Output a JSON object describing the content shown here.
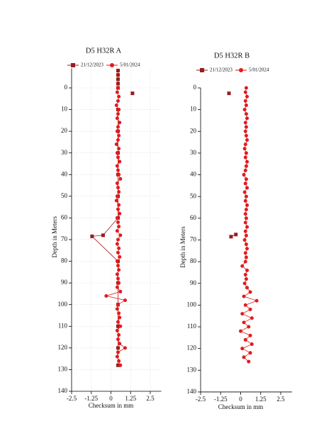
{
  "chart_data": [
    {
      "type": "line",
      "title": "D5 H32R A",
      "x_label": "Checksum in mm",
      "y_label": "Depth in Meters",
      "xlim": [
        -2.5,
        3.2
      ],
      "xticks": [
        -2.5,
        -1.25,
        0,
        1.25,
        2.5
      ],
      "ylim": [
        140,
        -9
      ],
      "yticks": [
        0,
        10,
        20,
        30,
        40,
        50,
        60,
        70,
        80,
        90,
        100,
        110,
        120,
        130,
        140
      ],
      "grid": true,
      "series": [
        {
          "name": "21/12/2023",
          "color": "#9b1c1c",
          "marker": "square",
          "y": [
            -8,
            -6,
            -4,
            -2,
            0,
            null,
            2.5,
            null,
            10,
            20,
            30,
            40,
            50,
            60,
            68,
            68.5,
            80,
            90,
            100,
            110,
            120,
            128
          ],
          "x": [
            0.45,
            0.45,
            0.45,
            0.45,
            0.45,
            null,
            1.37,
            null,
            0.45,
            0.45,
            0.45,
            0.45,
            0.45,
            0.45,
            -0.5,
            -1.2,
            0.45,
            0.45,
            0.45,
            0.45,
            0.45,
            0.45
          ]
        },
        {
          "name": "5/01/2024",
          "color": "#e41a1c",
          "marker": "circle",
          "y": [
            0,
            2,
            4,
            6,
            8,
            10,
            12,
            14,
            16,
            18,
            20,
            22,
            24,
            26,
            28,
            30,
            32,
            34,
            36,
            38,
            40,
            42,
            44,
            46,
            48,
            50,
            52,
            54,
            56,
            58,
            60,
            62,
            64,
            66,
            68,
            70,
            72,
            74,
            76,
            78,
            80,
            82,
            84,
            86,
            88,
            90,
            92,
            94,
            96,
            98,
            100,
            102,
            104,
            106,
            108,
            110,
            112,
            114,
            116,
            118,
            120,
            122,
            124,
            126,
            128
          ],
          "x": [
            0.45,
            0.4,
            0.5,
            0.45,
            0.35,
            0.5,
            0.45,
            0.4,
            0.55,
            0.45,
            0.4,
            0.5,
            0.45,
            0.35,
            0.5,
            0.4,
            0.45,
            0.55,
            0.4,
            0.45,
            0.5,
            0.6,
            0.4,
            0.45,
            0.5,
            0.4,
            0.35,
            0.5,
            0.45,
            0.55,
            0.4,
            0.45,
            0.5,
            0.4,
            0.6,
            0.45,
            0.4,
            0.5,
            0.45,
            0.55,
            0.4,
            0.45,
            0.5,
            0.4,
            0.45,
            0.5,
            0.4,
            0.6,
            -0.3,
            0.9,
            0.45,
            0.4,
            0.5,
            0.55,
            0.45,
            0.6,
            0.4,
            0.5,
            0.45,
            0.55,
            0.9,
            0.45,
            0.4,
            0.5,
            0.6
          ]
        }
      ]
    },
    {
      "type": "line",
      "title": "D5 H32R B",
      "x_label": "Checksum in mm",
      "y_label": "Depth in Meters",
      "xlim": [
        -2.5,
        3.2
      ],
      "xticks": [
        -2.5,
        -1.25,
        0,
        1.25,
        2.5
      ],
      "ylim": [
        140,
        0
      ],
      "yticks": [
        0,
        10,
        20,
        30,
        40,
        50,
        60,
        70,
        80,
        90,
        100,
        110,
        120,
        130,
        140
      ],
      "grid": false,
      "series": [
        {
          "name": "21/12/2023",
          "color": "#9b1c1c",
          "marker": "square",
          "y": [
            2.5,
            null,
            67.5,
            68.5
          ],
          "x": [
            -0.73,
            null,
            -0.3,
            -0.6
          ]
        },
        {
          "name": "5/01/2024",
          "color": "#e41a1c",
          "marker": "circle",
          "y": [
            0,
            2,
            4,
            6,
            8,
            10,
            12,
            14,
            16,
            18,
            20,
            22,
            24,
            26,
            28,
            30,
            32,
            34,
            36,
            38,
            40,
            42,
            44,
            46,
            48,
            50,
            52,
            54,
            56,
            58,
            60,
            62,
            64,
            66,
            68,
            70,
            72,
            74,
            76,
            78,
            80,
            82,
            84,
            86,
            88,
            90,
            92,
            94,
            96,
            98,
            100,
            102,
            104,
            106,
            108,
            110,
            112,
            114,
            116,
            118,
            120,
            122,
            124,
            126
          ],
          "x": [
            0.35,
            0.3,
            0.4,
            0.3,
            0.35,
            0.25,
            0.35,
            0.4,
            0.3,
            0.35,
            0.3,
            0.35,
            0.4,
            0.3,
            0.25,
            0.35,
            0.3,
            0.4,
            0.35,
            0.3,
            0.2,
            0.35,
            0.3,
            0.4,
            0.25,
            0.35,
            0.3,
            0.4,
            0.35,
            0.3,
            0.35,
            0.3,
            0.4,
            0.3,
            0.35,
            0.25,
            0.35,
            0.4,
            0.3,
            0.35,
            0.3,
            0.1,
            0.4,
            0.3,
            0.35,
            0.25,
            0.4,
            0.6,
            0.2,
            1.0,
            0.3,
            0.6,
            0.1,
            0.7,
            0.2,
            0.5,
            0.0,
            0.6,
            0.3,
            0.7,
            0.1,
            0.6,
            0.2,
            0.5
          ]
        }
      ]
    }
  ]
}
